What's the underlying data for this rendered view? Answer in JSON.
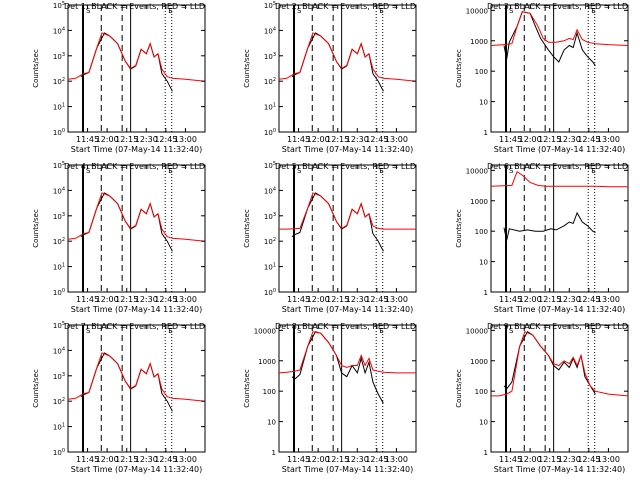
{
  "window": {
    "width": 640,
    "height": 480
  },
  "colors": {
    "events": "#000000",
    "lld": "#ff0000",
    "axis": "#000000",
    "background": "#ffffff"
  },
  "x_tick_labels": [
    "11:45",
    "12:00",
    "12:15",
    "12:30",
    "12:45",
    "13:00"
  ],
  "x_tick_minutes": [
    705,
    720,
    735,
    750,
    765,
    780
  ],
  "xlim_minutes": [
    690.0,
    795.0
  ],
  "xlabel": "Start Time (07-May-14 11:32:40)",
  "ylabel": "Counts/sec",
  "markers": {
    "solid_minutes": [
      701.5,
      738.0
    ],
    "dashed_minutes": [
      715.5,
      731.5
    ],
    "dotted_minutes": [
      764.5,
      769.5
    ],
    "bracket_labels": [
      "S",
      "E"
    ]
  },
  "chart_data": [
    {
      "type": "line",
      "title": "Det 1: BLACK = Events, RED = LLD",
      "xlabel": "Start Time (07-May-14 11:32:40)",
      "ylabel": "Counts/sec",
      "yscale": "log",
      "ylim": [
        1,
        100000
      ],
      "y_tick_labels": [
        "10^0",
        "10^1",
        "10^2",
        "10^3",
        "10^4",
        "10^5"
      ],
      "series": [
        {
          "name": "BLACK",
          "x": [
            700,
            702,
            706,
            712,
            718,
            722,
            728,
            734,
            738,
            742,
            746,
            750,
            753,
            756,
            759,
            762,
            766,
            770
          ],
          "y": [
            150,
            180,
            220,
            2000,
            8000,
            6000,
            3000,
            600,
            300,
            400,
            1800,
            1200,
            3000,
            900,
            1200,
            200,
            100,
            40
          ]
        },
        {
          "name": "RED",
          "x": [
            690,
            696,
            702,
            706,
            712,
            716,
            722,
            728,
            734,
            738,
            742,
            746,
            750,
            753,
            756,
            759,
            762,
            766,
            770,
            780,
            795
          ],
          "y": [
            120,
            130,
            200,
            220,
            2000,
            8000,
            6000,
            3000,
            600,
            320,
            420,
            1800,
            1200,
            3000,
            900,
            1200,
            300,
            150,
            130,
            120,
            100
          ]
        }
      ]
    },
    {
      "type": "line",
      "title": "Det 2: BLACK = Events, RED = LLD",
      "xlabel": "Start Time (07-May-14 11:32:40)",
      "ylabel": "Counts/sec",
      "yscale": "log",
      "ylim": [
        1,
        100000
      ],
      "y_tick_labels": [
        "10^0",
        "10^1",
        "10^2",
        "10^3",
        "10^4",
        "10^5"
      ],
      "series": [
        {
          "name": "BLACK",
          "x": [
            700,
            702,
            706,
            712,
            718,
            722,
            728,
            734,
            738,
            742,
            746,
            750,
            753,
            756,
            759,
            762,
            766,
            770
          ],
          "y": [
            150,
            180,
            220,
            2000,
            8000,
            6000,
            3000,
            600,
            300,
            400,
            1800,
            1200,
            3000,
            900,
            1200,
            200,
            100,
            40
          ]
        },
        {
          "name": "RED",
          "x": [
            690,
            696,
            702,
            706,
            712,
            716,
            722,
            728,
            734,
            738,
            742,
            746,
            750,
            753,
            756,
            759,
            762,
            766,
            770,
            780,
            795
          ],
          "y": [
            120,
            130,
            200,
            220,
            2000,
            8000,
            6000,
            3000,
            600,
            320,
            420,
            1800,
            1200,
            3000,
            900,
            1200,
            300,
            150,
            130,
            120,
            100
          ]
        }
      ]
    },
    {
      "type": "line",
      "title": "Det 3: BLACK = Events, RED = LLD",
      "xlabel": "Start Time (07-May-14 11:32:40)",
      "ylabel": "Counts/sec",
      "yscale": "log",
      "ylim": [
        1,
        15000
      ],
      "y_tick_labels": [
        "1",
        "10",
        "100",
        "1000",
        "10000"
      ],
      "series": [
        {
          "name": "BLACK",
          "x": [
            700,
            702,
            704,
            710,
            714,
            720,
            724,
            728,
            734,
            738,
            742,
            746,
            750,
            753,
            756,
            760,
            764,
            768,
            770
          ],
          "y": [
            700,
            250,
            900,
            3000,
            9000,
            8000,
            3000,
            1200,
            500,
            300,
            200,
            500,
            700,
            600,
            1800,
            500,
            300,
            200,
            150
          ]
        },
        {
          "name": "RED",
          "x": [
            690,
            700,
            706,
            710,
            714,
            720,
            726,
            730,
            734,
            740,
            746,
            750,
            753,
            756,
            760,
            764,
            770,
            780,
            795
          ],
          "y": [
            700,
            750,
            800,
            3000,
            9000,
            8000,
            3000,
            1200,
            900,
            900,
            1000,
            1200,
            1100,
            2300,
            1100,
            900,
            800,
            750,
            700
          ]
        }
      ]
    },
    {
      "type": "line",
      "title": "Det 4: BLACK = Events, RED = LLD",
      "xlabel": "Start Time (07-May-14 11:32:40)",
      "ylabel": "Counts/sec",
      "yscale": "log",
      "ylim": [
        1,
        100000
      ],
      "y_tick_labels": [
        "10^0",
        "10^1",
        "10^2",
        "10^3",
        "10^4",
        "10^5"
      ],
      "series": [
        {
          "name": "BLACK",
          "x": [
            700,
            702,
            706,
            712,
            718,
            722,
            728,
            734,
            738,
            742,
            746,
            750,
            753,
            756,
            759,
            762,
            766,
            770
          ],
          "y": [
            150,
            180,
            220,
            2000,
            8000,
            6000,
            3000,
            600,
            300,
            400,
            1800,
            1200,
            3000,
            900,
            1200,
            200,
            100,
            40
          ]
        },
        {
          "name": "RED",
          "x": [
            690,
            696,
            702,
            706,
            712,
            716,
            722,
            728,
            734,
            738,
            742,
            746,
            750,
            753,
            756,
            759,
            762,
            766,
            770,
            780,
            795
          ],
          "y": [
            120,
            130,
            200,
            220,
            2000,
            8000,
            6000,
            3000,
            600,
            320,
            420,
            1800,
            1200,
            3000,
            900,
            1200,
            300,
            150,
            130,
            120,
            100
          ]
        }
      ]
    },
    {
      "type": "line",
      "title": "Det 5: BLACK = Events, RED = LLD",
      "xlabel": "Start Time (07-May-14 11:32:40)",
      "ylabel": "Counts/sec",
      "yscale": "log",
      "ylim": [
        1,
        100000
      ],
      "y_tick_labels": [
        "10^0",
        "10^1",
        "10^2",
        "10^3",
        "10^4",
        "10^5"
      ],
      "series": [
        {
          "name": "BLACK",
          "x": [
            700,
            702,
            706,
            712,
            718,
            722,
            728,
            734,
            738,
            742,
            746,
            750,
            753,
            756,
            759,
            762,
            766,
            770
          ],
          "y": [
            150,
            180,
            220,
            2000,
            8000,
            6000,
            3000,
            600,
            300,
            400,
            1800,
            1200,
            3000,
            900,
            1200,
            200,
            100,
            40
          ]
        },
        {
          "name": "RED",
          "x": [
            690,
            696,
            702,
            706,
            712,
            716,
            722,
            728,
            734,
            738,
            742,
            746,
            750,
            753,
            756,
            759,
            762,
            766,
            770,
            780,
            795
          ],
          "y": [
            300,
            300,
            310,
            320,
            2000,
            8000,
            6000,
            3000,
            600,
            320,
            420,
            1800,
            1200,
            3000,
            900,
            1200,
            400,
            320,
            300,
            300,
            300
          ]
        }
      ]
    },
    {
      "type": "line",
      "title": "Det 6: BLACK = Events, RED = LLD",
      "xlabel": "Start Time (07-May-14 11:32:40)",
      "ylabel": "Counts/sec",
      "yscale": "log",
      "ylim": [
        1,
        15000
      ],
      "y_tick_labels": [
        "1",
        "10",
        "100",
        "1000",
        "10000"
      ],
      "series": [
        {
          "name": "BLACK",
          "x": [
            700,
            702,
            704,
            712,
            718,
            724,
            730,
            736,
            740,
            746,
            750,
            753,
            756,
            760,
            764,
            768,
            770
          ],
          "y": [
            130,
            50,
            120,
            100,
            110,
            100,
            100,
            120,
            110,
            150,
            200,
            180,
            400,
            200,
            150,
            100,
            90
          ]
        },
        {
          "name": "RED",
          "x": [
            690,
            700,
            706,
            710,
            714,
            720,
            726,
            732,
            740,
            750,
            760,
            770,
            780,
            795
          ],
          "y": [
            3000,
            3100,
            3200,
            9000,
            7000,
            4000,
            3200,
            3000,
            3000,
            3000,
            3000,
            3000,
            2900,
            2900
          ]
        }
      ]
    },
    {
      "type": "line",
      "title": "Det 7: BLACK = Events, RED = LLD",
      "xlabel": "Start Time (07-May-14 11:32:40)",
      "ylabel": "Counts/sec",
      "yscale": "log",
      "ylim": [
        1,
        100000
      ],
      "y_tick_labels": [
        "10^0",
        "10^1",
        "10^2",
        "10^3",
        "10^4",
        "10^5"
      ],
      "series": [
        {
          "name": "BLACK",
          "x": [
            700,
            702,
            706,
            712,
            718,
            722,
            728,
            734,
            738,
            742,
            746,
            750,
            753,
            756,
            759,
            762,
            766,
            770
          ],
          "y": [
            150,
            180,
            220,
            2000,
            8000,
            6000,
            3000,
            600,
            300,
            400,
            1800,
            1200,
            3000,
            900,
            1200,
            200,
            100,
            40
          ]
        },
        {
          "name": "RED",
          "x": [
            690,
            696,
            702,
            706,
            712,
            716,
            722,
            728,
            734,
            738,
            742,
            746,
            750,
            753,
            756,
            759,
            762,
            766,
            770,
            780,
            795
          ],
          "y": [
            120,
            130,
            200,
            220,
            2000,
            8000,
            6000,
            3000,
            600,
            320,
            420,
            1800,
            1200,
            3000,
            900,
            1200,
            300,
            150,
            130,
            120,
            100
          ]
        }
      ]
    },
    {
      "type": "line",
      "title": "Det 8: BLACK = Events, RED = LLD",
      "xlabel": "Start Time (07-May-14 11:32:40)",
      "ylabel": "Counts/sec",
      "yscale": "log",
      "ylim": [
        1,
        15000
      ],
      "y_tick_labels": [
        "1",
        "10",
        "100",
        "1000",
        "10000"
      ],
      "series": [
        {
          "name": "BLACK",
          "x": [
            700,
            702,
            706,
            712,
            718,
            722,
            728,
            734,
            738,
            742,
            746,
            750,
            753,
            756,
            759,
            762,
            766,
            770
          ],
          "y": [
            300,
            250,
            350,
            3000,
            9000,
            8000,
            4000,
            1500,
            400,
            300,
            700,
            400,
            1200,
            400,
            900,
            200,
            80,
            40
          ]
        },
        {
          "name": "RED",
          "x": [
            690,
            696,
            702,
            706,
            712,
            716,
            722,
            728,
            734,
            738,
            742,
            746,
            750,
            753,
            756,
            759,
            762,
            766,
            770,
            780,
            795
          ],
          "y": [
            400,
            420,
            450,
            500,
            3000,
            9000,
            8000,
            4000,
            1500,
            700,
            600,
            700,
            700,
            1500,
            700,
            1200,
            500,
            450,
            420,
            400,
            400
          ]
        }
      ]
    },
    {
      "type": "line",
      "title": "Det 9: BLACK = Events, RED = LLD",
      "xlabel": "Start Time (07-May-14 11:32:40)",
      "ylabel": "Counts/sec",
      "yscale": "log",
      "ylim": [
        1,
        15000
      ],
      "y_tick_labels": [
        "1",
        "10",
        "100",
        "1000",
        "10000"
      ],
      "series": [
        {
          "name": "BLACK",
          "x": [
            700,
            702,
            706,
            712,
            718,
            722,
            728,
            734,
            738,
            742,
            746,
            750,
            753,
            756,
            759,
            762,
            766,
            770
          ],
          "y": [
            150,
            120,
            200,
            3000,
            9000,
            7000,
            3000,
            1500,
            700,
            500,
            900,
            600,
            1200,
            600,
            1500,
            300,
            150,
            80
          ]
        },
        {
          "name": "RED",
          "x": [
            690,
            696,
            702,
            706,
            712,
            716,
            722,
            728,
            734,
            738,
            742,
            746,
            750,
            753,
            756,
            759,
            762,
            766,
            770,
            780,
            795
          ],
          "y": [
            70,
            70,
            80,
            100,
            3000,
            9000,
            7000,
            3000,
            1500,
            800,
            700,
            1000,
            800,
            1300,
            700,
            1500,
            400,
            150,
            100,
            80,
            70
          ]
        }
      ]
    }
  ]
}
